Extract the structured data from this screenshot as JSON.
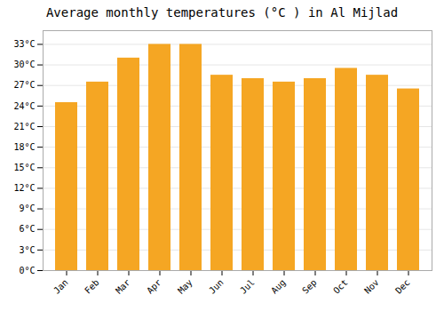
{
  "chart_data": {
    "type": "bar",
    "title": "Average monthly temperatures (°C ) in Al Mijlad",
    "categories": [
      "Jan",
      "Feb",
      "Mar",
      "Apr",
      "May",
      "Jun",
      "Jul",
      "Aug",
      "Sep",
      "Oct",
      "Nov",
      "Dec"
    ],
    "values": [
      24.5,
      27.5,
      31.0,
      33.0,
      33.0,
      28.5,
      28.0,
      27.5,
      28.0,
      29.5,
      28.5,
      26.5
    ],
    "color": "#F5A623",
    "ylim": [
      0,
      35
    ],
    "yticks": [
      {
        "value": 0,
        "label": "0°C"
      },
      {
        "value": 3,
        "label": "3°C"
      },
      {
        "value": 6,
        "label": "6°C"
      },
      {
        "value": 9,
        "label": "9°C"
      },
      {
        "value": 12,
        "label": "12°C"
      },
      {
        "value": 15,
        "label": "15°C"
      },
      {
        "value": 18,
        "label": "18°C"
      },
      {
        "value": 21,
        "label": "21°C"
      },
      {
        "value": 24,
        "label": "24°C"
      },
      {
        "value": 27,
        "label": "27°C"
      },
      {
        "value": 30,
        "label": "30°C"
      },
      {
        "value": 33,
        "label": "33°C"
      }
    ],
    "grid": true
  }
}
